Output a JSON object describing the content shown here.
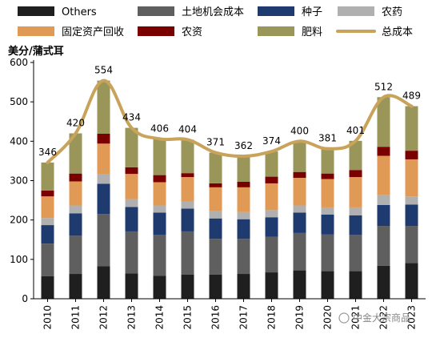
{
  "chart_data": {
    "type": "bar",
    "stacked": true,
    "ylabel": "美分/蒲式耳",
    "ylim": [
      0,
      600
    ],
    "yticks": [
      0,
      100,
      200,
      300,
      400,
      500,
      600
    ],
    "categories": [
      "2010",
      "2011",
      "2012",
      "2013",
      "2014",
      "2015",
      "2016",
      "2017",
      "2018",
      "2019",
      "2020",
      "2021",
      "2022",
      "2023"
    ],
    "series": [
      {
        "name": "Others",
        "color": "#1f1f1f",
        "values": [
          57,
          63,
          83,
          64,
          58,
          61,
          61,
          63,
          67,
          72,
          70,
          70,
          84,
          91
        ]
      },
      {
        "name": "土地机会成本",
        "color": "#5f5f5f",
        "values": [
          83,
          97,
          132,
          107,
          104,
          110,
          91,
          89,
          90,
          95,
          93,
          92,
          101,
          94
        ]
      },
      {
        "name": "种子",
        "color": "#1f3a6e",
        "values": [
          47,
          57,
          77,
          62,
          57,
          58,
          52,
          50,
          50,
          52,
          51,
          50,
          53,
          54
        ]
      },
      {
        "name": "农药",
        "color": "#b0b0b0",
        "values": [
          18,
          20,
          24,
          20,
          18,
          18,
          18,
          18,
          18,
          18,
          18,
          20,
          25,
          21
        ]
      },
      {
        "name": "固定资产回收",
        "color": "#e09a55",
        "values": [
          55,
          61,
          78,
          64,
          59,
          62,
          61,
          63,
          68,
          70,
          72,
          77,
          100,
          94
        ]
      },
      {
        "name": "农资",
        "color": "#7a0000",
        "values": [
          15,
          20,
          25,
          17,
          18,
          10,
          10,
          14,
          17,
          15,
          14,
          18,
          23,
          22
        ]
      },
      {
        "name": "肥料",
        "color": "#9a965a",
        "values": [
          71,
          102,
          135,
          100,
          92,
          85,
          78,
          65,
          64,
          78,
          63,
          74,
          126,
          113
        ]
      }
    ],
    "total": {
      "name": "总成本",
      "color": "#c9a35a",
      "values": [
        346,
        420,
        554,
        434,
        406,
        404,
        371,
        362,
        374,
        400,
        381,
        401,
        512,
        489
      ]
    },
    "legend_position": "top"
  },
  "watermark": "中金大宗商品"
}
